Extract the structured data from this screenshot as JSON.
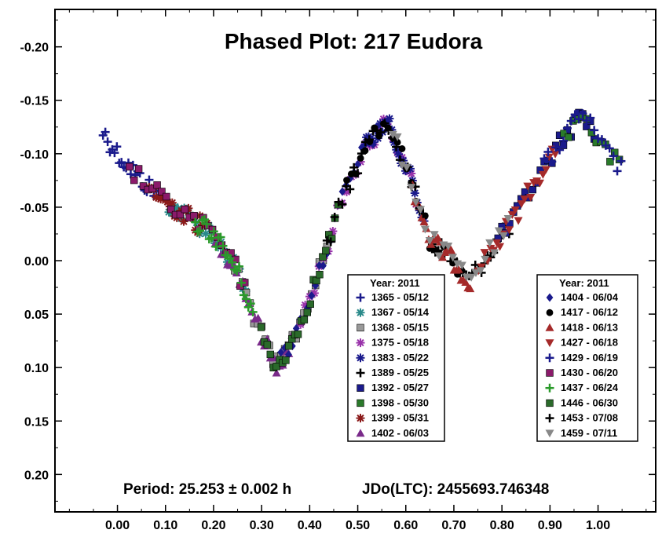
{
  "chart_data": {
    "type": "scatter",
    "title": "Phased Plot: 217 Eudora",
    "xlabel": "",
    "ylabel": "",
    "xlim": [
      -0.13,
      1.12
    ],
    "ylim": [
      0.235,
      -0.235
    ],
    "y_inverted": true,
    "x_ticks": [
      "0.00",
      "0.10",
      "0.20",
      "0.30",
      "0.40",
      "0.50",
      "0.60",
      "0.70",
      "0.80",
      "0.90",
      "1.00"
    ],
    "x_tick_values": [
      0,
      0.1,
      0.2,
      0.3,
      0.4,
      0.5,
      0.6,
      0.7,
      0.8,
      0.9,
      1.0
    ],
    "y_ticks": [
      "-0.20",
      "-0.15",
      "-0.10",
      "-0.05",
      "0.00",
      "0.05",
      "0.10",
      "0.15",
      "0.20"
    ],
    "y_tick_values": [
      -0.2,
      -0.15,
      -0.1,
      -0.05,
      0,
      0.05,
      0.1,
      0.15,
      0.2
    ],
    "period_text": "Period: 25.253 ± 0.002 h",
    "jdo_text": "JDo(LTC): 2455693.746348",
    "lightcurve_shape": {
      "phase": [
        -0.03,
        0.0,
        0.05,
        0.1,
        0.15,
        0.2,
        0.25,
        0.3,
        0.33,
        0.37,
        0.42,
        0.47,
        0.52,
        0.56,
        0.6,
        0.65,
        0.7,
        0.73,
        0.77,
        0.82,
        0.87,
        0.92,
        0.97,
        1.0,
        1.05
      ],
      "mag": [
        -0.12,
        -0.1,
        -0.075,
        -0.055,
        -0.04,
        -0.025,
        0.01,
        0.07,
        0.1,
        0.07,
        0.01,
        -0.06,
        -0.11,
        -0.13,
        -0.09,
        -0.02,
        0.0,
        0.02,
        -0.005,
        -0.035,
        -0.075,
        -0.11,
        -0.14,
        -0.11,
        -0.085
      ]
    },
    "legend_placement": "inside, two boxes lower-center and lower-right",
    "legends": [
      {
        "title": "Year: 2011",
        "entries": [
          {
            "label": "1365 - 05/12",
            "marker": "plus",
            "color": "#1a1a8c"
          },
          {
            "label": "1367 - 05/14",
            "marker": "asterisk",
            "color": "#2a8a8a"
          },
          {
            "label": "1368 - 05/15",
            "marker": "square",
            "color": "#999999"
          },
          {
            "label": "1375 - 05/18",
            "marker": "asterisk",
            "color": "#9933aa"
          },
          {
            "label": "1383 - 05/22",
            "marker": "asterisk",
            "color": "#1a1a8c"
          },
          {
            "label": "1389 - 05/25",
            "marker": "plus",
            "color": "#000000"
          },
          {
            "label": "1392 - 05/27",
            "marker": "square",
            "color": "#1a1a8c"
          },
          {
            "label": "1398 - 05/30",
            "marker": "square",
            "color": "#2a7a2a"
          },
          {
            "label": "1399 - 05/31",
            "marker": "asterisk",
            "color": "#8b1a1a"
          },
          {
            "label": "1402 - 06/03",
            "marker": "triangle-up",
            "color": "#7a2a8a"
          }
        ]
      },
      {
        "title": "Year: 2011",
        "entries": [
          {
            "label": "1404 - 06/04",
            "marker": "diamond",
            "color": "#1a1a8c"
          },
          {
            "label": "1417 - 06/12",
            "marker": "circle",
            "color": "#000000"
          },
          {
            "label": "1418 - 06/13",
            "marker": "triangle-up",
            "color": "#a52a2a"
          },
          {
            "label": "1427 - 06/18",
            "marker": "triangle-down",
            "color": "#a52a2a"
          },
          {
            "label": "1429 - 06/19",
            "marker": "plus",
            "color": "#1a1a8c"
          },
          {
            "label": "1430 - 06/20",
            "marker": "square",
            "color": "#8b1a6a"
          },
          {
            "label": "1437 - 06/24",
            "marker": "plus",
            "color": "#2a9a2a"
          },
          {
            "label": "1446 - 06/30",
            "marker": "square",
            "color": "#2a6a2a"
          },
          {
            "label": "1453 - 07/08",
            "marker": "plus",
            "color": "#000000"
          },
          {
            "label": "1459 - 07/11",
            "marker": "triangle-down",
            "color": "#888888"
          }
        ]
      }
    ],
    "grid": false
  }
}
